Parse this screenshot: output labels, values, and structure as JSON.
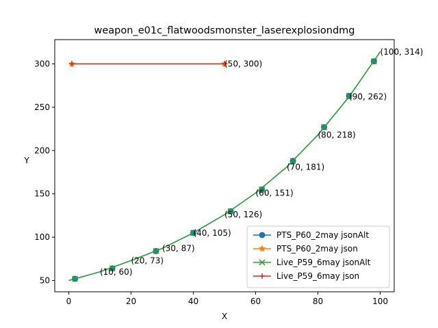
{
  "chart_data": {
    "type": "line",
    "title": "weapon_e01c_flatwoodsmonster_laserexplosiondmg",
    "xlabel": "X",
    "ylabel": "Y",
    "xlim": [
      -4.5,
      104.5
    ],
    "ylim": [
      37,
      328
    ],
    "xticks": [
      0,
      20,
      40,
      60,
      80,
      100
    ],
    "yticks": [
      50,
      100,
      150,
      200,
      250,
      300
    ],
    "grid": false,
    "legend_position": "lower-right",
    "series": [
      {
        "name": "PTS_P60_2may jsonAlt",
        "color": "#1f77b4",
        "marker": "o",
        "x": [
          0,
          10,
          20,
          30,
          40,
          50,
          60,
          70,
          80,
          90,
          100
        ],
        "y": [
          50,
          60,
          73,
          87,
          105,
          126,
          151,
          181,
          218,
          262,
          314
        ],
        "marker_x": [
          2,
          14,
          28,
          40,
          52,
          62,
          72,
          82,
          90,
          98
        ],
        "marker_y": [
          52,
          64,
          84,
          105,
          130,
          155,
          188,
          227,
          263,
          303
        ]
      },
      {
        "name": "PTS_P60_2may json",
        "color": "#ff7f0e",
        "marker": "*",
        "x": [
          1,
          50
        ],
        "y": [
          300,
          300
        ]
      },
      {
        "name": "Live_P59_6may jsonAlt",
        "color": "#2ca02c",
        "marker": "x",
        "x": [
          0,
          10,
          20,
          30,
          40,
          50,
          60,
          70,
          80,
          90,
          100
        ],
        "y": [
          50,
          60,
          73,
          87,
          105,
          126,
          151,
          181,
          218,
          262,
          314
        ],
        "marker_x": [
          2,
          14,
          28,
          40,
          52,
          62,
          72,
          82,
          90,
          98
        ],
        "marker_y": [
          52,
          64,
          84,
          105,
          130,
          155,
          188,
          227,
          263,
          303
        ]
      },
      {
        "name": "Live_P59_6may json",
        "color": "#d62728",
        "marker": "+",
        "x": [
          1,
          50
        ],
        "y": [
          300,
          300
        ]
      }
    ],
    "annotations": [
      {
        "text": "(10, 60)",
        "x": 10,
        "y": 60
      },
      {
        "text": "(20, 73)",
        "x": 20,
        "y": 73
      },
      {
        "text": "(30, 87)",
        "x": 30,
        "y": 87
      },
      {
        "text": "(40, 105)",
        "x": 40,
        "y": 105
      },
      {
        "text": "(50, 126)",
        "x": 50,
        "y": 126
      },
      {
        "text": "(60, 151)",
        "x": 60,
        "y": 151
      },
      {
        "text": "(70, 181)",
        "x": 70,
        "y": 181
      },
      {
        "text": "(80, 218)",
        "x": 80,
        "y": 218
      },
      {
        "text": "(90, 262)",
        "x": 90,
        "y": 262
      },
      {
        "text": "(100, 314)",
        "x": 100,
        "y": 314
      },
      {
        "text": "(50, 300)",
        "x": 50,
        "y": 300
      }
    ]
  }
}
